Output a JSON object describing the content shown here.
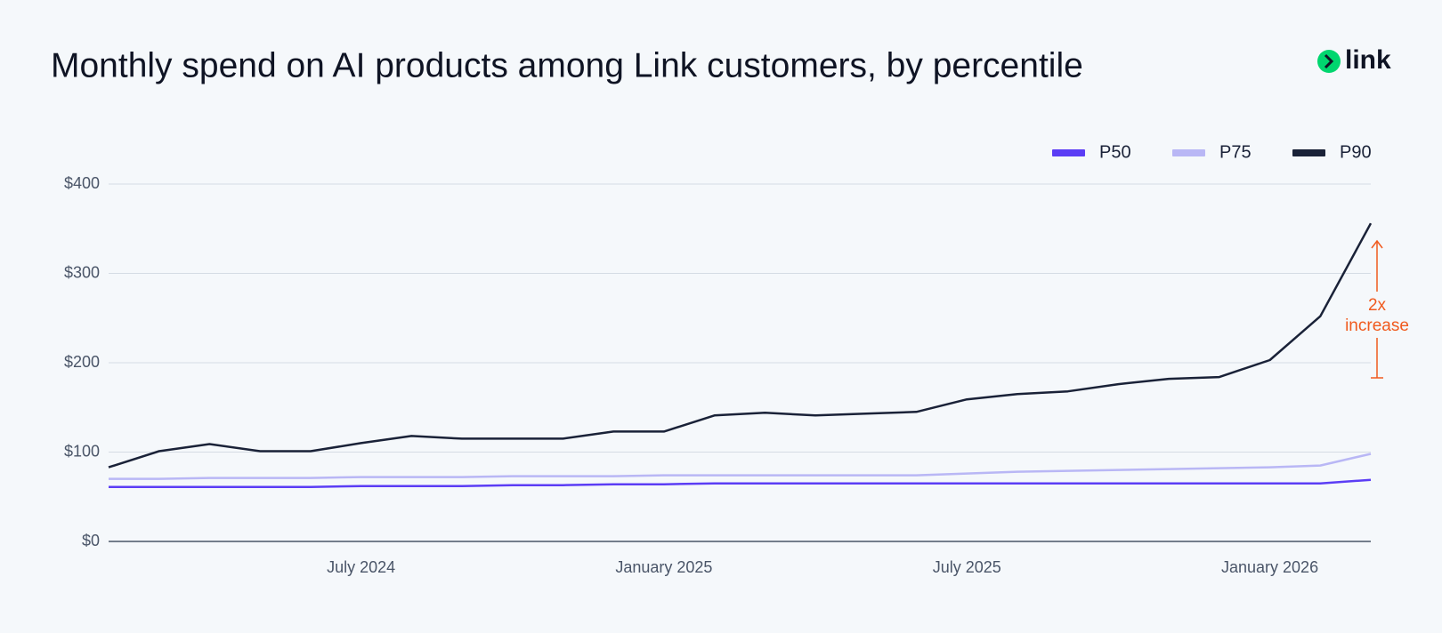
{
  "chart_data": {
    "type": "line",
    "title": "Monthly spend on AI products among Link customers, by percentile",
    "logo": "link",
    "annotation": [
      "2x",
      "increase"
    ],
    "x": [
      "2024-02",
      "2024-03",
      "2024-04",
      "2024-05",
      "2024-06",
      "2024-07",
      "2024-08",
      "2024-09",
      "2024-10",
      "2024-11",
      "2024-12",
      "2025-01",
      "2025-02",
      "2025-03",
      "2025-04",
      "2025-05",
      "2025-06",
      "2025-07",
      "2025-08",
      "2025-09",
      "2025-10",
      "2025-11",
      "2025-12",
      "2026-01",
      "2026-02",
      "2026-03"
    ],
    "xlim": [
      "2024-02",
      "2026-03"
    ],
    "xticks": [
      {
        "value": "2024-07",
        "label": "July 2024"
      },
      {
        "value": "2025-01",
        "label": "January 2025"
      },
      {
        "value": "2025-07",
        "label": "July 2025"
      },
      {
        "value": "2026-01",
        "label": "January 2026"
      }
    ],
    "ylim": [
      0,
      400
    ],
    "yticks": [
      {
        "value": 0,
        "label": "$0"
      },
      {
        "value": 100,
        "label": "$100"
      },
      {
        "value": 200,
        "label": "$200"
      },
      {
        "value": 300,
        "label": "$300"
      },
      {
        "value": 400,
        "label": "$400"
      }
    ],
    "grid": true,
    "legend": "top-right",
    "series": [
      {
        "name": "P50",
        "color": "#5b3df5",
        "values": [
          61,
          61,
          61,
          61,
          61,
          62,
          62,
          62,
          63,
          63,
          64,
          64,
          65,
          65,
          65,
          65,
          65,
          65,
          65,
          65,
          65,
          65,
          65,
          65,
          65,
          69
        ]
      },
      {
        "name": "P75",
        "color": "#b9b7f5",
        "values": [
          70,
          70,
          71,
          71,
          71,
          72,
          72,
          72,
          73,
          73,
          73,
          74,
          74,
          74,
          74,
          74,
          74,
          76,
          78,
          79,
          80,
          81,
          82,
          83,
          85,
          98
        ]
      },
      {
        "name": "P90",
        "color": "#1a2238",
        "values": [
          83,
          101,
          109,
          101,
          101,
          110,
          118,
          115,
          115,
          115,
          123,
          123,
          141,
          144,
          141,
          143,
          145,
          159,
          165,
          168,
          176,
          182,
          184,
          203,
          252,
          356
        ]
      }
    ]
  }
}
